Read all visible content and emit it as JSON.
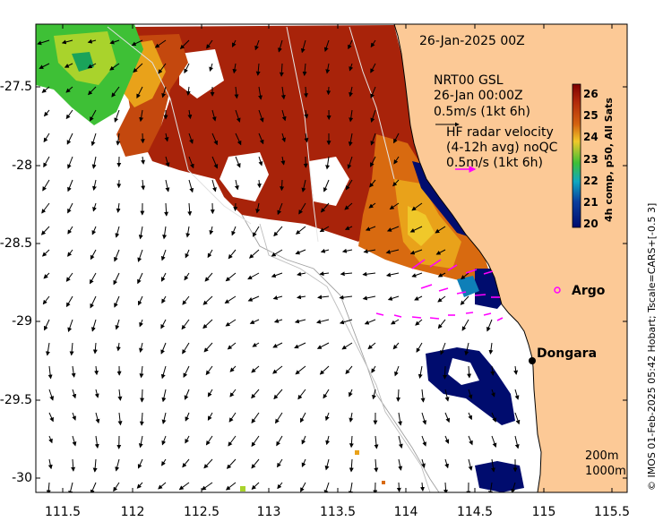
{
  "date_label": "26-Jan-2025 00Z",
  "overlay": {
    "model_line1": "NRT00 GSL",
    "model_line2": "26-Jan 00:00Z",
    "model_scale": "0.5m/s (1kt 6h)",
    "hf_line1": "HF radar velocity",
    "hf_line2": "(4-12h avg) noQC",
    "hf_scale": "0.5m/s (1kt 6h)"
  },
  "colorbar": {
    "label": "4h comp, p50, All Sats",
    "ticks": [
      "26",
      "25",
      "24",
      "23",
      "22",
      "21",
      "20"
    ],
    "colors": [
      "#7f0000",
      "#a8230a",
      "#c4480e",
      "#d86a10",
      "#e9a21a",
      "#f0c82a",
      "#a9d32c",
      "#3ec036",
      "#1aa35a",
      "#0e7fb8",
      "#0c3f9e",
      "#000c6e"
    ]
  },
  "places": {
    "argo": "Argo",
    "dongara": "Dongara"
  },
  "depth_legend": [
    "200m",
    "1000m"
  ],
  "credit": "© IMOS 01-Feb-2025 05:42 Hobart; Tscale=CARS+[-0.5 3]",
  "axes": {
    "x_ticks": [
      "111.5",
      "112",
      "112.5",
      "113",
      "113.5",
      "114",
      "114.5",
      "115",
      "115.5"
    ],
    "y_ticks": [
      "-27.5",
      "-28",
      "-28.5",
      "-29",
      "-29.5",
      "-30"
    ]
  },
  "colors": {
    "land": "#fcc996",
    "sst_hot": "#a8230a",
    "sst_warm": "#d86a10",
    "sst_green": "#3ec036",
    "sst_cold": "#000c6e",
    "hf_vectors": "#ff00ff"
  }
}
